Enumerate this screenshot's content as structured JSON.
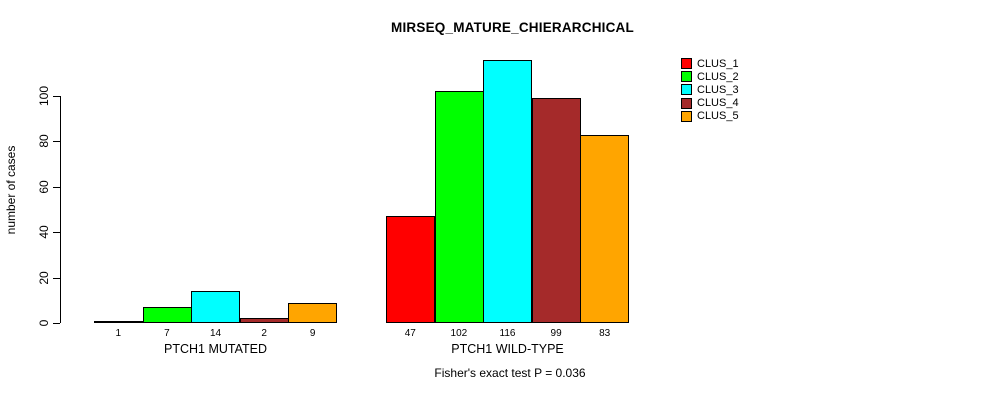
{
  "title": "MIRSEQ_MATURE_CHIERARCHICAL",
  "chart_data": {
    "type": "bar",
    "title": "MIRSEQ_MATURE_CHIERARCHICAL",
    "xlabel": "",
    "ylabel": "number of cases",
    "ylim": [
      0,
      116
    ],
    "yticks": [
      0,
      20,
      40,
      60,
      80,
      100
    ],
    "grid": false,
    "legend_position": "right",
    "bar_border_color": "#000000",
    "groups": [
      "PTCH1 MUTATED",
      "PTCH1 WILD-TYPE"
    ],
    "series": [
      {
        "name": "CLUS_1",
        "color": "#FF0000",
        "values": [
          1,
          47
        ]
      },
      {
        "name": "CLUS_2",
        "color": "#00FF00",
        "values": [
          7,
          102
        ]
      },
      {
        "name": "CLUS_3",
        "color": "#00FFFF",
        "values": [
          14,
          116
        ]
      },
      {
        "name": "CLUS_4",
        "color": "#A52A2A",
        "values": [
          2,
          99
        ]
      },
      {
        "name": "CLUS_5",
        "color": "#FFA500",
        "values": [
          9,
          83
        ]
      }
    ],
    "bar_value_labels": {
      "PTCH1 MUTATED": [
        "1",
        "7",
        "14",
        "2",
        "9"
      ],
      "PTCH1 WILD-TYPE": [
        "47",
        "102",
        "116",
        "99",
        "83"
      ]
    },
    "annotation": "Fisher's exact test P = 0.036"
  }
}
